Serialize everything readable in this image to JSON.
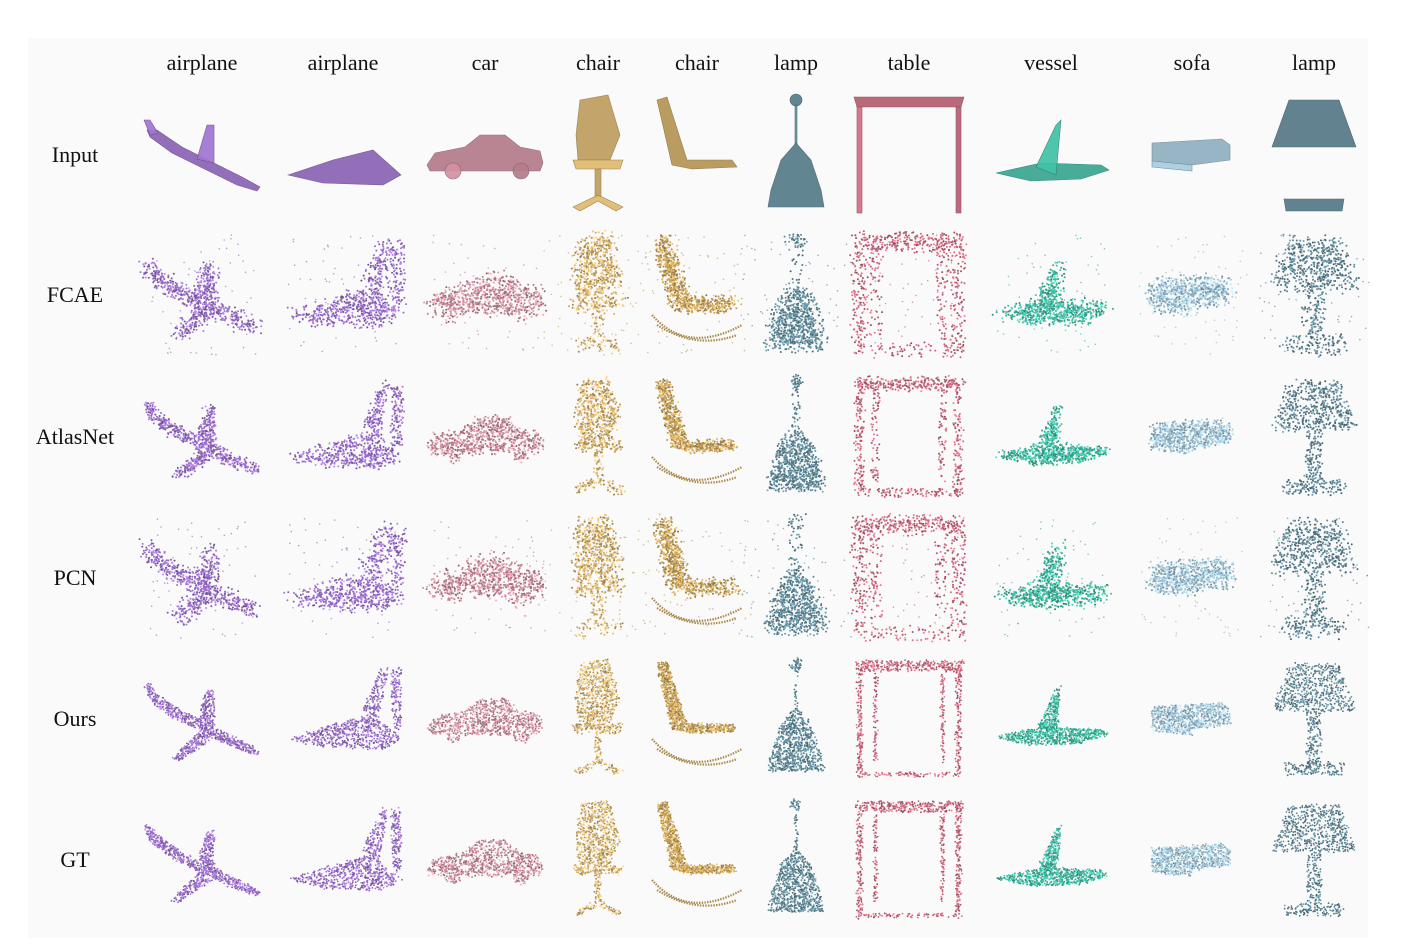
{
  "columns": [
    {
      "label": "airplane",
      "shape": "airplane",
      "color": "#9a6fc9"
    },
    {
      "label": "airplane",
      "shape": "airplane2",
      "color": "#9a6fc9"
    },
    {
      "label": "car",
      "shape": "car",
      "color": "#c98a9a"
    },
    {
      "label": "chair",
      "shape": "chair",
      "color": "#d4b06a"
    },
    {
      "label": "chair",
      "shape": "rocker",
      "color": "#c9a45c"
    },
    {
      "label": "lamp",
      "shape": "pendant",
      "color": "#5f8a99"
    },
    {
      "label": "table",
      "shape": "table",
      "color": "#c9687e"
    },
    {
      "label": "vessel",
      "shape": "vessel",
      "color": "#3fb8a0"
    },
    {
      "label": "sofa",
      "shape": "sofa",
      "color": "#9fc4d6"
    },
    {
      "label": "lamp",
      "shape": "tablelamp",
      "color": "#5e8594"
    }
  ],
  "rows": [
    {
      "label": "Input",
      "style": "partial"
    },
    {
      "label": "FCAE",
      "style": "noisy"
    },
    {
      "label": "AtlasNet",
      "style": "mesh"
    },
    {
      "label": "PCN",
      "style": "noisy"
    },
    {
      "label": "Ours",
      "style": "clean"
    },
    {
      "label": "GT",
      "style": "clean"
    }
  ]
}
